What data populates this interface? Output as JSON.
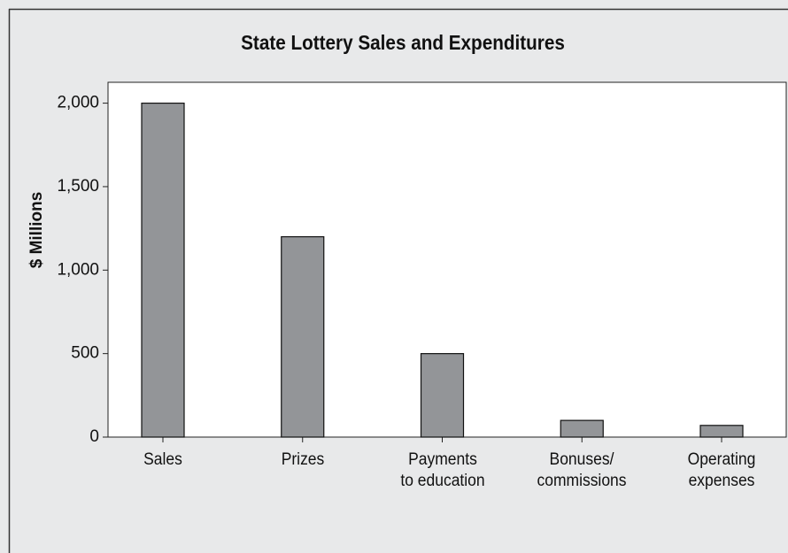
{
  "chart_data": {
    "type": "bar",
    "title": "State Lottery Sales and Expenditures",
    "y_label": "$ Millions",
    "categories": [
      "Sales",
      "Prizes",
      "Payments\nto education",
      "Bonuses/\ncommissions",
      "Operating\nexpenses"
    ],
    "values": [
      2000,
      1200,
      500,
      100,
      70
    ],
    "color": "#939598",
    "ylim": [
      0,
      2125
    ],
    "yticks": [
      0,
      {
        "value": 500,
        "label": "500"
      },
      {
        "value": 1000,
        "label": "1,000"
      },
      {
        "value": 1500,
        "label": "1,500"
      },
      {
        "value": 2000,
        "label": "2,000"
      }
    ],
    "grid": false
  }
}
